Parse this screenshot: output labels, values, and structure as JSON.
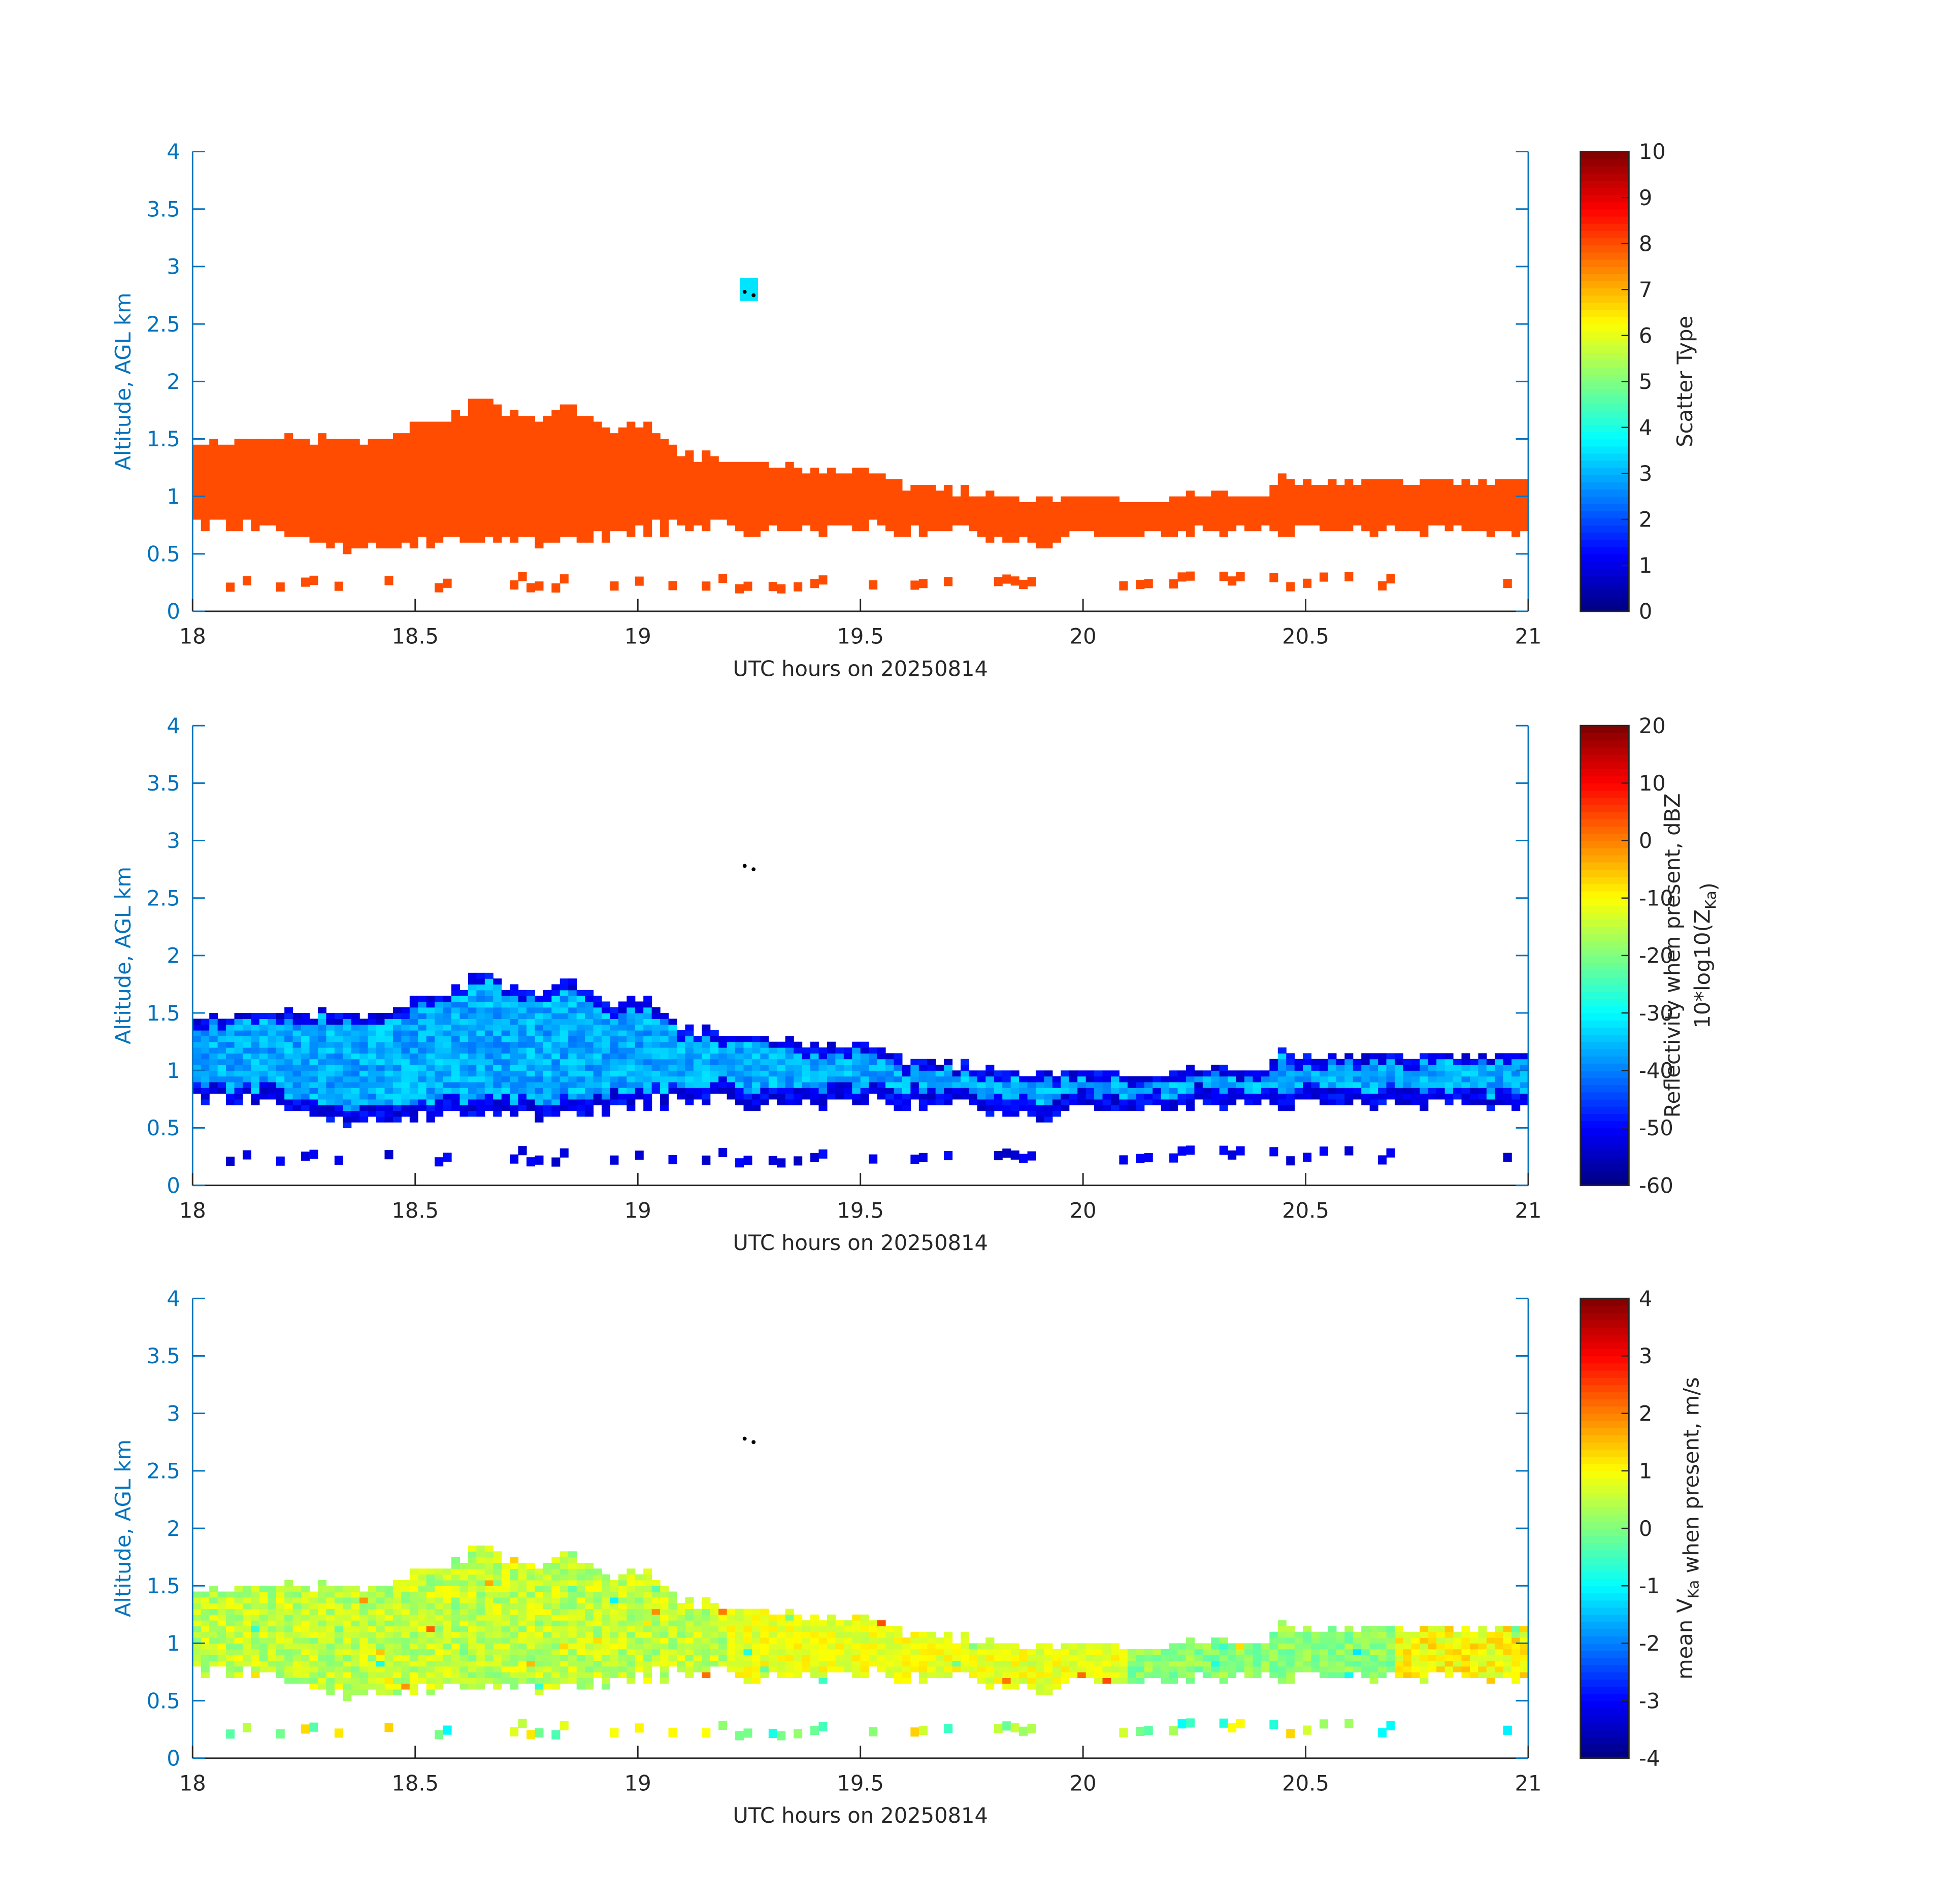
{
  "figure": {
    "panels": [
      {
        "xlabel": "UTC hours on 20250814",
        "ylabel": "Altitude, AGL km",
        "cbar_label_lines": [
          "Scatter Type"
        ]
      },
      {
        "xlabel": "UTC hours on 20250814",
        "ylabel": "Altitude, AGL km",
        "cbar_label_lines": [
          "Reflectivity when present, dBZ",
          "10*log10(Z_Ka)"
        ]
      },
      {
        "xlabel": "UTC hours on 20250814",
        "ylabel": "Altitude, AGL km",
        "cbar_label_lines": [
          "mean V_Ka when present, m/s"
        ]
      }
    ]
  },
  "chart_data": [
    {
      "type": "heatmap",
      "variable": "scatter_type",
      "xlabel": "UTC hours on 20250814",
      "ylabel": "Altitude, AGL km",
      "xlim": [
        18,
        21
      ],
      "ylim": [
        0,
        4
      ],
      "xticks": [
        18,
        18.5,
        19,
        19.5,
        20,
        20.5,
        21
      ],
      "yticks": [
        0,
        0.5,
        1,
        1.5,
        2,
        2.5,
        3,
        3.5,
        4
      ],
      "colorbar": {
        "label": "Scatter Type",
        "range": [
          0,
          10
        ],
        "ticks": [
          0,
          1,
          2,
          3,
          4,
          5,
          6,
          7,
          8,
          9,
          10
        ],
        "colormap": "jet"
      },
      "layer_fill_value": 8,
      "cloud_top_km": [
        [
          18.0,
          1.45
        ],
        [
          18.1,
          1.45
        ],
        [
          18.2,
          1.45
        ],
        [
          18.3,
          1.5
        ],
        [
          18.4,
          1.45
        ],
        [
          18.5,
          1.6
        ],
        [
          18.55,
          1.65
        ],
        [
          18.6,
          1.7
        ],
        [
          18.65,
          1.85
        ],
        [
          18.7,
          1.7
        ],
        [
          18.8,
          1.65
        ],
        [
          18.85,
          1.75
        ],
        [
          18.9,
          1.6
        ],
        [
          18.95,
          1.5
        ],
        [
          19.0,
          1.6
        ],
        [
          19.05,
          1.55
        ],
        [
          19.1,
          1.35
        ],
        [
          19.2,
          1.3
        ],
        [
          19.3,
          1.25
        ],
        [
          19.4,
          1.2
        ],
        [
          19.5,
          1.2
        ],
        [
          19.55,
          1.15
        ],
        [
          19.6,
          1.05
        ],
        [
          19.7,
          1.05
        ],
        [
          19.8,
          1.0
        ],
        [
          19.9,
          0.95
        ],
        [
          20.0,
          0.95
        ],
        [
          20.1,
          0.95
        ],
        [
          20.2,
          1.0
        ],
        [
          20.3,
          1.0
        ],
        [
          20.4,
          1.0
        ],
        [
          20.45,
          1.15
        ],
        [
          20.5,
          1.1
        ],
        [
          20.6,
          1.1
        ],
        [
          20.7,
          1.1
        ],
        [
          20.8,
          1.1
        ],
        [
          20.85,
          1.15
        ],
        [
          20.9,
          1.1
        ],
        [
          21.0,
          1.1
        ]
      ],
      "cloud_base_km": [
        [
          18.0,
          0.75
        ],
        [
          18.1,
          0.75
        ],
        [
          18.2,
          0.7
        ],
        [
          18.25,
          0.6
        ],
        [
          18.3,
          0.6
        ],
        [
          18.4,
          0.55
        ],
        [
          18.5,
          0.6
        ],
        [
          18.6,
          0.65
        ],
        [
          18.7,
          0.65
        ],
        [
          18.8,
          0.6
        ],
        [
          18.9,
          0.65
        ],
        [
          19.0,
          0.7
        ],
        [
          19.1,
          0.75
        ],
        [
          19.2,
          0.75
        ],
        [
          19.3,
          0.7
        ],
        [
          19.4,
          0.7
        ],
        [
          19.5,
          0.75
        ],
        [
          19.6,
          0.7
        ],
        [
          19.7,
          0.7
        ],
        [
          19.8,
          0.65
        ],
        [
          19.9,
          0.6
        ],
        [
          20.0,
          0.7
        ],
        [
          20.1,
          0.65
        ],
        [
          20.2,
          0.7
        ],
        [
          20.3,
          0.7
        ],
        [
          20.4,
          0.7
        ],
        [
          20.5,
          0.7
        ],
        [
          20.6,
          0.7
        ],
        [
          20.7,
          0.7
        ],
        [
          20.8,
          0.7
        ],
        [
          20.9,
          0.7
        ],
        [
          21.0,
          0.7
        ]
      ],
      "isolated_near_surface_echo": {
        "altitude_km": [
          0.15,
          0.3
        ],
        "value": 8
      },
      "elevated_echo": {
        "time_h": [
          19.23,
          19.27
        ],
        "altitude_km": [
          2.7,
          2.9
        ],
        "value": 3.5
      },
      "black_markers": [
        [
          19.24,
          2.78
        ],
        [
          19.26,
          2.75
        ]
      ]
    },
    {
      "type": "heatmap",
      "variable": "reflectivity_dBZ",
      "xlabel": "UTC hours on 20250814",
      "ylabel": "Altitude, AGL km",
      "xlim": [
        18,
        21
      ],
      "ylim": [
        0,
        4
      ],
      "xticks": [
        18,
        18.5,
        19,
        19.5,
        20,
        20.5,
        21
      ],
      "yticks": [
        0,
        0.5,
        1,
        1.5,
        2,
        2.5,
        3,
        3.5,
        4
      ],
      "colorbar": {
        "label": "Reflectivity when present, dBZ 10*log10(Z_Ka)",
        "range": [
          -60,
          20
        ],
        "ticks": [
          -60,
          -50,
          -40,
          -30,
          -20,
          -10,
          0,
          10,
          20
        ],
        "colormap": "jet"
      },
      "typical_layer_values_dBZ": {
        "core": [
          -40,
          -32
        ],
        "edges": [
          -55,
          -48
        ]
      },
      "black_markers": [
        [
          19.24,
          2.78
        ],
        [
          19.26,
          2.75
        ]
      ]
    },
    {
      "type": "heatmap",
      "variable": "mean_doppler_velocity_ms",
      "xlabel": "UTC hours on 20250814",
      "ylabel": "Altitude, AGL km",
      "xlim": [
        18,
        21
      ],
      "ylim": [
        0,
        4
      ],
      "xticks": [
        18,
        18.5,
        19,
        19.5,
        20,
        20.5,
        21
      ],
      "yticks": [
        0,
        0.5,
        1,
        1.5,
        2,
        2.5,
        3,
        3.5,
        4
      ],
      "colorbar": {
        "label": "mean V_Ka when present, m/s",
        "range": [
          -4,
          4
        ],
        "ticks": [
          -4,
          -3,
          -2,
          -1,
          0,
          1,
          2,
          3,
          4
        ],
        "colormap": "jet"
      },
      "typical_layer_values_ms": {
        "18.0-19.2": [
          0,
          1
        ],
        "19.2-20.1": [
          0.5,
          1.2
        ],
        "20.1-20.7": [
          -0.3,
          0.5
        ],
        "20.7-21.0": [
          0.5,
          1.5
        ]
      },
      "black_markers": [
        [
          19.24,
          2.78
        ],
        [
          19.26,
          2.75
        ]
      ]
    }
  ]
}
